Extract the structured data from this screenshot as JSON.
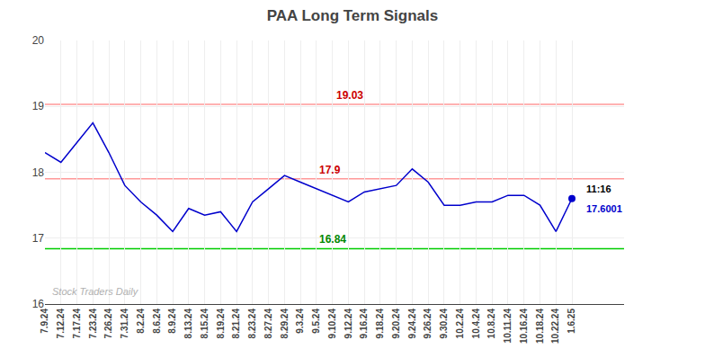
{
  "chart_data": {
    "type": "line",
    "title": "PAA Long Term Signals",
    "categories": [
      "7.9.24",
      "7.12.24",
      "7.17.24",
      "7.23.24",
      "7.26.24",
      "7.31.24",
      "8.2.24",
      "8.6.24",
      "8.9.24",
      "8.13.24",
      "8.15.24",
      "8.19.24",
      "8.21.24",
      "8.23.24",
      "8.27.24",
      "8.29.24",
      "9.3.24",
      "9.5.24",
      "9.10.24",
      "9.12.24",
      "9.16.24",
      "9.18.24",
      "9.20.24",
      "9.24.24",
      "9.26.24",
      "9.30.24",
      "10.2.24",
      "10.4.24",
      "10.8.24",
      "10.11.24",
      "10.16.24",
      "10.18.24",
      "10.22.24",
      "1.6.25"
    ],
    "values": [
      18.3,
      18.15,
      18.45,
      18.75,
      18.3,
      17.8,
      17.55,
      17.35,
      17.1,
      17.45,
      17.35,
      17.4,
      17.1,
      17.55,
      17.75,
      17.95,
      17.85,
      17.75,
      17.65,
      17.55,
      17.7,
      17.75,
      17.8,
      18.05,
      17.85,
      17.5,
      17.5,
      17.55,
      17.55,
      17.65,
      17.65,
      17.5,
      17.1,
      17.6001
    ],
    "color": "#0000cc",
    "ylim": [
      16,
      20
    ],
    "yticks": [
      16,
      17,
      18,
      19,
      20
    ],
    "grid": true,
    "hlines": [
      {
        "value": 19.03,
        "label": "19.03",
        "color": "#ff9999",
        "label_color": "#cc0000"
      },
      {
        "value": 17.9,
        "label": "17.9",
        "color": "#ff9999",
        "label_color": "#cc0000"
      },
      {
        "value": 16.84,
        "label": "16.84",
        "color": "#00cc00",
        "label_color": "#008800"
      }
    ],
    "last_label": "11:16",
    "last_label_color": "#000000",
    "watermark": "Stock Traders Daily",
    "watermark_color": "#b0b0b0"
  }
}
